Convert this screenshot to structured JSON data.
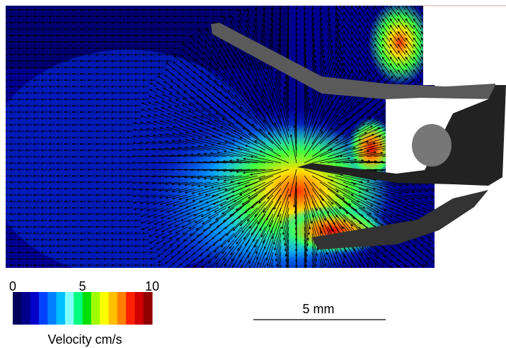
{
  "colorbar": {
    "ticks": [
      0,
      5,
      10
    ],
    "lim": [
      0,
      10
    ],
    "label": "Velocity cm/s",
    "colors": [
      "#00005a",
      "#00008c",
      "#0000c8",
      "#0040ff",
      "#0080ff",
      "#00c0ff",
      "#80ffff",
      "#00ff80",
      "#00e000",
      "#a0ff00",
      "#ffff00",
      "#ffc000",
      "#ff8000",
      "#ff2000",
      "#d00000",
      "#900000"
    ]
  },
  "scale_bar": {
    "label": "5 mm"
  }
}
